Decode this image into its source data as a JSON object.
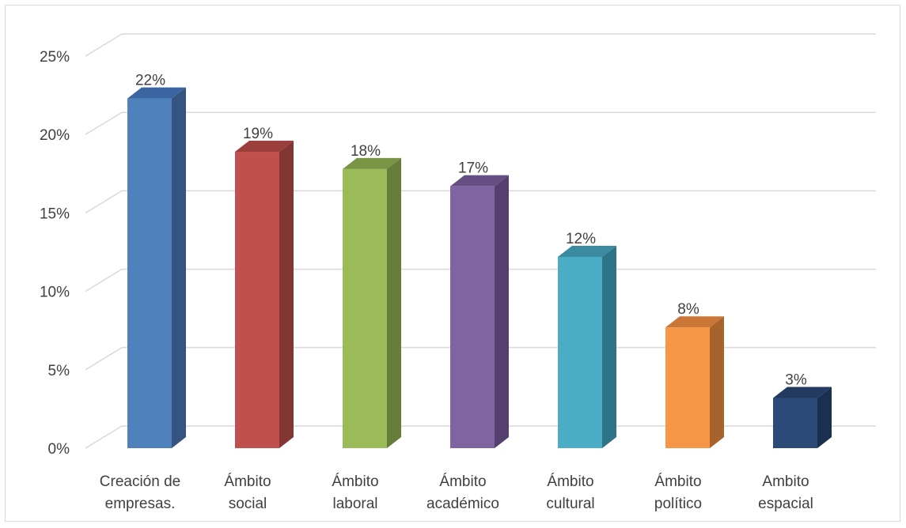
{
  "chart_data": {
    "type": "bar",
    "title": "",
    "xlabel": "",
    "ylabel": "",
    "ylim": [
      0,
      25
    ],
    "yticks": [
      "0%",
      "5%",
      "10%",
      "15%",
      "20%",
      "25%"
    ],
    "grid": true,
    "legend": "none",
    "categories": [
      [
        "Creación de",
        "empresas."
      ],
      [
        "Ámbito",
        "social"
      ],
      [
        "Ámbito",
        "laboral"
      ],
      [
        "Ámbito",
        "académico"
      ],
      [
        "Ámbito",
        "cultural"
      ],
      [
        "Ámbito",
        "político"
      ],
      [
        "Ambito",
        "espacial"
      ]
    ],
    "values": [
      22.3,
      18.9,
      17.8,
      16.7,
      12.2,
      7.7,
      3.2
    ],
    "data_labels": [
      "22%",
      "19%",
      "18%",
      "17%",
      "12%",
      "8%",
      "3%"
    ],
    "colors": [
      {
        "front": "#4f81bd",
        "side": "#35547f",
        "top": "#3a65a0"
      },
      {
        "front": "#c0504d",
        "side": "#843634",
        "top": "#9a3f3c"
      },
      {
        "front": "#9bbb59",
        "side": "#677e3b",
        "top": "#7a9446"
      },
      {
        "front": "#8064a2",
        "side": "#553f6f",
        "top": "#654f82"
      },
      {
        "front": "#4bacc6",
        "side": "#2f7386",
        "top": "#3a8aa0"
      },
      {
        "front": "#f79646",
        "side": "#a8622b",
        "top": "#c97636"
      },
      {
        "front": "#2c4a78",
        "side": "#1b2f4e",
        "top": "#223a60"
      }
    ]
  }
}
